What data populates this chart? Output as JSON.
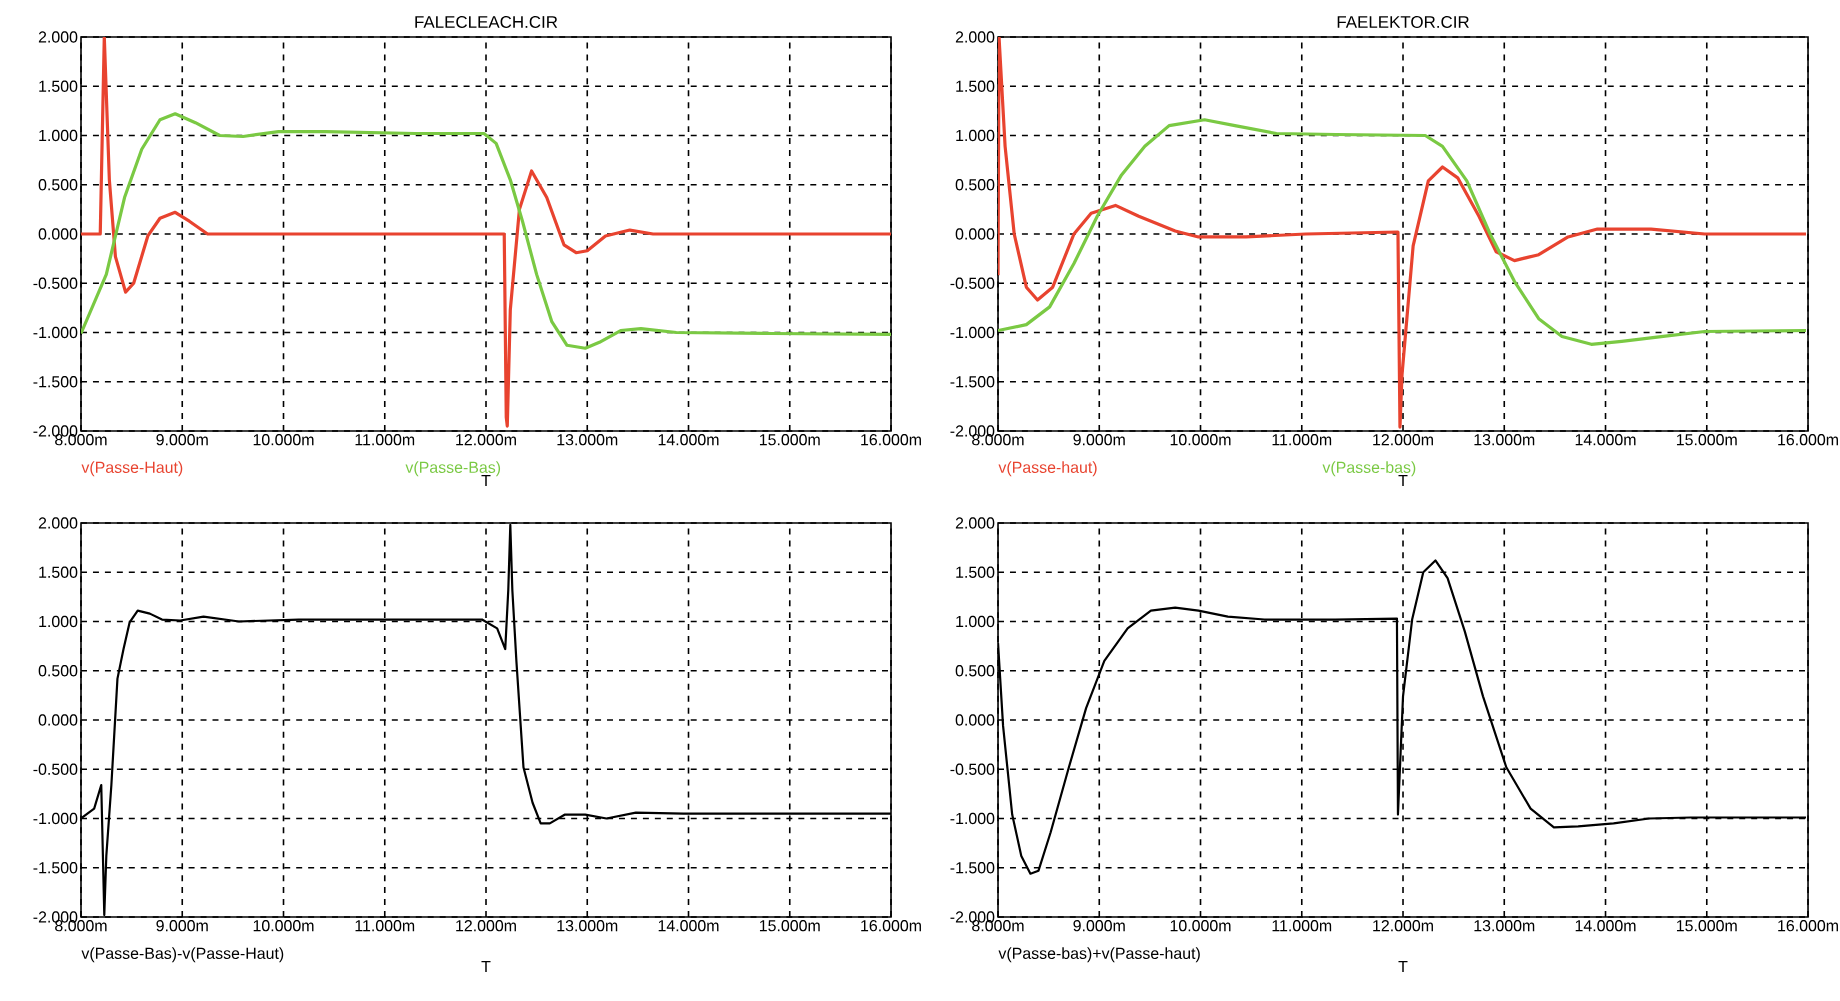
{
  "chart_data": [
    {
      "type": "line",
      "title": "FALECLEACH.CIR",
      "xlabel": "T",
      "grid": true,
      "xlim": [
        8,
        16
      ],
      "ylim": [
        -2,
        2
      ],
      "xticks": [
        {
          "value": 8,
          "label": "8.000m"
        },
        {
          "value": 9,
          "label": "9.000m"
        },
        {
          "value": 10,
          "label": "10.000m"
        },
        {
          "value": 11,
          "label": "11.000m"
        },
        {
          "value": 12,
          "label": "12.000m"
        },
        {
          "value": 13,
          "label": "13.000m"
        },
        {
          "value": 14,
          "label": "14.000m"
        },
        {
          "value": 15,
          "label": "15.000m"
        },
        {
          "value": 16,
          "label": "16.000m"
        }
      ],
      "yticks": [
        {
          "value": -2,
          "label": "-2.000"
        },
        {
          "value": -1.5,
          "label": "-1.500"
        },
        {
          "value": -1,
          "label": "-1.000"
        },
        {
          "value": -0.5,
          "label": "-0.500"
        },
        {
          "value": 0,
          "label": "0.000"
        },
        {
          "value": 0.5,
          "label": "0.500"
        },
        {
          "value": 1,
          "label": "1.000"
        },
        {
          "value": 1.5,
          "label": "1.500"
        },
        {
          "value": 2,
          "label": "2.000"
        }
      ],
      "series": [
        {
          "name": "v(Passe-Haut)",
          "color": "#e8432f",
          "x": [
            8.0,
            8.19,
            8.23,
            8.28,
            8.34,
            8.44,
            8.52,
            8.66,
            8.78,
            8.93,
            9.07,
            9.25,
            9.54,
            12.18,
            12.2,
            12.21,
            12.24,
            12.33,
            12.45,
            12.6,
            12.77,
            12.89,
            13.0,
            13.18,
            13.42,
            13.65,
            16.0
          ],
          "values": [
            0,
            0,
            2.0,
            0.55,
            -0.23,
            -0.59,
            -0.5,
            -0.02,
            0.16,
            0.22,
            0.13,
            0,
            0,
            0,
            -1.86,
            -1.95,
            -0.77,
            0.25,
            0.64,
            0.37,
            -0.11,
            -0.19,
            -0.17,
            -0.02,
            0.04,
            0,
            0
          ]
        },
        {
          "name": "v(Passe-Bas)",
          "color": "#7ac943",
          "x": [
            8.0,
            8.25,
            8.43,
            8.6,
            8.78,
            8.93,
            9.13,
            9.37,
            9.6,
            9.95,
            10.42,
            11.3,
            11.98,
            12.1,
            12.24,
            12.36,
            12.5,
            12.65,
            12.8,
            12.98,
            13.12,
            13.33,
            13.53,
            13.88,
            14.82,
            16.0
          ],
          "values": [
            -1.01,
            -0.41,
            0.37,
            0.86,
            1.16,
            1.22,
            1.13,
            1.0,
            0.99,
            1.04,
            1.04,
            1.02,
            1.02,
            0.92,
            0.55,
            0.13,
            -0.41,
            -0.89,
            -1.13,
            -1.16,
            -1.1,
            -0.98,
            -0.96,
            -1.0,
            -1.01,
            -1.02
          ]
        }
      ]
    },
    {
      "type": "line",
      "title": "FAELEKTOR.CIR",
      "xlabel": "T",
      "grid": true,
      "xlim": [
        8,
        16
      ],
      "ylim": [
        -2,
        2
      ],
      "xticks": [
        {
          "value": 8,
          "label": "8.000m"
        },
        {
          "value": 9,
          "label": "9.000m"
        },
        {
          "value": 10,
          "label": "10.000m"
        },
        {
          "value": 11,
          "label": "11.000m"
        },
        {
          "value": 12,
          "label": "12.000m"
        },
        {
          "value": 13,
          "label": "13.000m"
        },
        {
          "value": 14,
          "label": "14.000m"
        },
        {
          "value": 15,
          "label": "15.000m"
        },
        {
          "value": 16,
          "label": "16.000m"
        }
      ],
      "yticks": [
        {
          "value": -2,
          "label": "-2.000"
        },
        {
          "value": -1.5,
          "label": "-1.500"
        },
        {
          "value": -1,
          "label": "-1.000"
        },
        {
          "value": -0.5,
          "label": "-0.500"
        },
        {
          "value": 0,
          "label": "0.000"
        },
        {
          "value": 0.5,
          "label": "0.500"
        },
        {
          "value": 1,
          "label": "1.000"
        },
        {
          "value": 1.5,
          "label": "1.500"
        },
        {
          "value": 2,
          "label": "2.000"
        }
      ],
      "series": [
        {
          "name": "v(Passe-haut)",
          "color": "#e8432f",
          "x": [
            8.0,
            8.01,
            8.07,
            8.16,
            8.28,
            8.39,
            8.54,
            8.75,
            8.92,
            9.16,
            9.39,
            9.75,
            9.98,
            10.45,
            11.04,
            11.95,
            11.97,
            11.99,
            12.1,
            12.25,
            12.39,
            12.54,
            12.75,
            12.92,
            13.1,
            13.34,
            13.63,
            13.92,
            14.45,
            14.98,
            15.98
          ],
          "values": [
            -0.42,
            2.0,
            0.89,
            0,
            -0.54,
            -0.67,
            -0.54,
            0,
            0.21,
            0.29,
            0.18,
            0.03,
            -0.03,
            -0.03,
            0,
            0.02,
            -1.96,
            -1.43,
            -0.12,
            0.54,
            0.68,
            0.57,
            0.18,
            -0.18,
            -0.27,
            -0.21,
            -0.03,
            0.05,
            0.05,
            0,
            0
          ]
        },
        {
          "name": "v(Passe-bas)",
          "color": "#7ac943",
          "x": [
            8.0,
            8.28,
            8.51,
            8.75,
            8.98,
            9.22,
            9.45,
            9.69,
            10.04,
            10.34,
            10.75,
            11.34,
            12.22,
            12.39,
            12.63,
            12.86,
            13.1,
            13.34,
            13.57,
            13.86,
            14.16,
            14.57,
            14.98,
            15.98
          ],
          "values": [
            -0.98,
            -0.92,
            -0.74,
            -0.3,
            0.18,
            0.6,
            0.89,
            1.1,
            1.16,
            1.1,
            1.02,
            1.01,
            1.0,
            0.89,
            0.54,
            0,
            -0.48,
            -0.86,
            -1.04,
            -1.12,
            -1.09,
            -1.04,
            -0.99,
            -0.98
          ]
        }
      ]
    },
    {
      "type": "line",
      "xlabel": "T",
      "grid": true,
      "xlim": [
        8,
        16
      ],
      "ylim": [
        -2,
        2
      ],
      "xticks": [
        {
          "value": 8,
          "label": "8.000m"
        },
        {
          "value": 9,
          "label": "9.000m"
        },
        {
          "value": 10,
          "label": "10.000m"
        },
        {
          "value": 11,
          "label": "11.000m"
        },
        {
          "value": 12,
          "label": "12.000m"
        },
        {
          "value": 13,
          "label": "13.000m"
        },
        {
          "value": 14,
          "label": "14.000m"
        },
        {
          "value": 15,
          "label": "15.000m"
        },
        {
          "value": 16,
          "label": "16.000m"
        }
      ],
      "yticks": [
        {
          "value": -2,
          "label": "-2.000"
        },
        {
          "value": -1.5,
          "label": "-1.500"
        },
        {
          "value": -1,
          "label": "-1.000"
        },
        {
          "value": -0.5,
          "label": "-0.500"
        },
        {
          "value": 0,
          "label": "0.000"
        },
        {
          "value": 0.5,
          "label": "0.500"
        },
        {
          "value": 1,
          "label": "1.000"
        },
        {
          "value": 1.5,
          "label": "1.500"
        },
        {
          "value": 2,
          "label": "2.000"
        }
      ],
      "series": [
        {
          "name": "v(Passe-Bas)-v(Passe-Haut)",
          "color": "#000000",
          "x": [
            8.01,
            8.13,
            8.2,
            8.23,
            8.25,
            8.3,
            8.36,
            8.42,
            8.48,
            8.56,
            8.68,
            8.8,
            8.98,
            9.21,
            9.56,
            10.15,
            11.96,
            12.11,
            12.19,
            12.22,
            12.24,
            12.26,
            12.3,
            12.37,
            12.46,
            12.54,
            12.63,
            12.78,
            12.98,
            13.19,
            13.48,
            13.95,
            16.0
          ],
          "values": [
            -0.99,
            -0.9,
            -0.66,
            -1.98,
            -1.38,
            -0.66,
            0.42,
            0.72,
            0.99,
            1.11,
            1.08,
            1.02,
            1.01,
            1.05,
            1.0,
            1.02,
            1.02,
            0.93,
            0.72,
            1.32,
            1.98,
            1.32,
            0.6,
            -0.48,
            -0.84,
            -1.05,
            -1.05,
            -0.96,
            -0.96,
            -1.0,
            -0.94,
            -0.95,
            -0.95
          ]
        }
      ]
    },
    {
      "type": "line",
      "xlabel": "T",
      "grid": true,
      "xlim": [
        8,
        16
      ],
      "ylim": [
        -2,
        2
      ],
      "xticks": [
        {
          "value": 8,
          "label": "8.000m"
        },
        {
          "value": 9,
          "label": "9.000m"
        },
        {
          "value": 10,
          "label": "10.000m"
        },
        {
          "value": 11,
          "label": "11.000m"
        },
        {
          "value": 12,
          "label": "12.000m"
        },
        {
          "value": 13,
          "label": "13.000m"
        },
        {
          "value": 14,
          "label": "14.000m"
        },
        {
          "value": 15,
          "label": "15.000m"
        },
        {
          "value": 16,
          "label": "16.000m"
        }
      ],
      "yticks": [
        {
          "value": -2,
          "label": "-2.000"
        },
        {
          "value": -1.5,
          "label": "-1.500"
        },
        {
          "value": -1,
          "label": "-1.000"
        },
        {
          "value": -0.5,
          "label": "-0.500"
        },
        {
          "value": 0,
          "label": "0.000"
        },
        {
          "value": 0.5,
          "label": "0.500"
        },
        {
          "value": 1,
          "label": "1.000"
        },
        {
          "value": 1.5,
          "label": "1.500"
        },
        {
          "value": 2,
          "label": "2.000"
        }
      ],
      "series": [
        {
          "name": "v(Passe-bas)+v(Passe-haut)",
          "color": "#000000",
          "x": [
            8.0,
            8.05,
            8.14,
            8.23,
            8.32,
            8.4,
            8.52,
            8.7,
            8.87,
            9.05,
            9.28,
            9.51,
            9.75,
            9.98,
            10.27,
            10.63,
            11.33,
            11.94,
            11.95,
            12.0,
            12.09,
            12.2,
            12.32,
            12.44,
            12.61,
            12.79,
            13.02,
            13.26,
            13.49,
            13.73,
            14.08,
            14.43,
            14.84,
            15.98
          ],
          "values": [
            0.78,
            -0.06,
            -0.96,
            -1.38,
            -1.56,
            -1.53,
            -1.14,
            -0.48,
            0.12,
            0.6,
            0.93,
            1.11,
            1.14,
            1.11,
            1.05,
            1.02,
            1.02,
            1.03,
            -0.96,
            0.24,
            1.02,
            1.5,
            1.62,
            1.44,
            0.9,
            0.24,
            -0.48,
            -0.9,
            -1.09,
            -1.08,
            -1.05,
            -1.0,
            -0.99,
            -0.99
          ]
        }
      ]
    }
  ]
}
